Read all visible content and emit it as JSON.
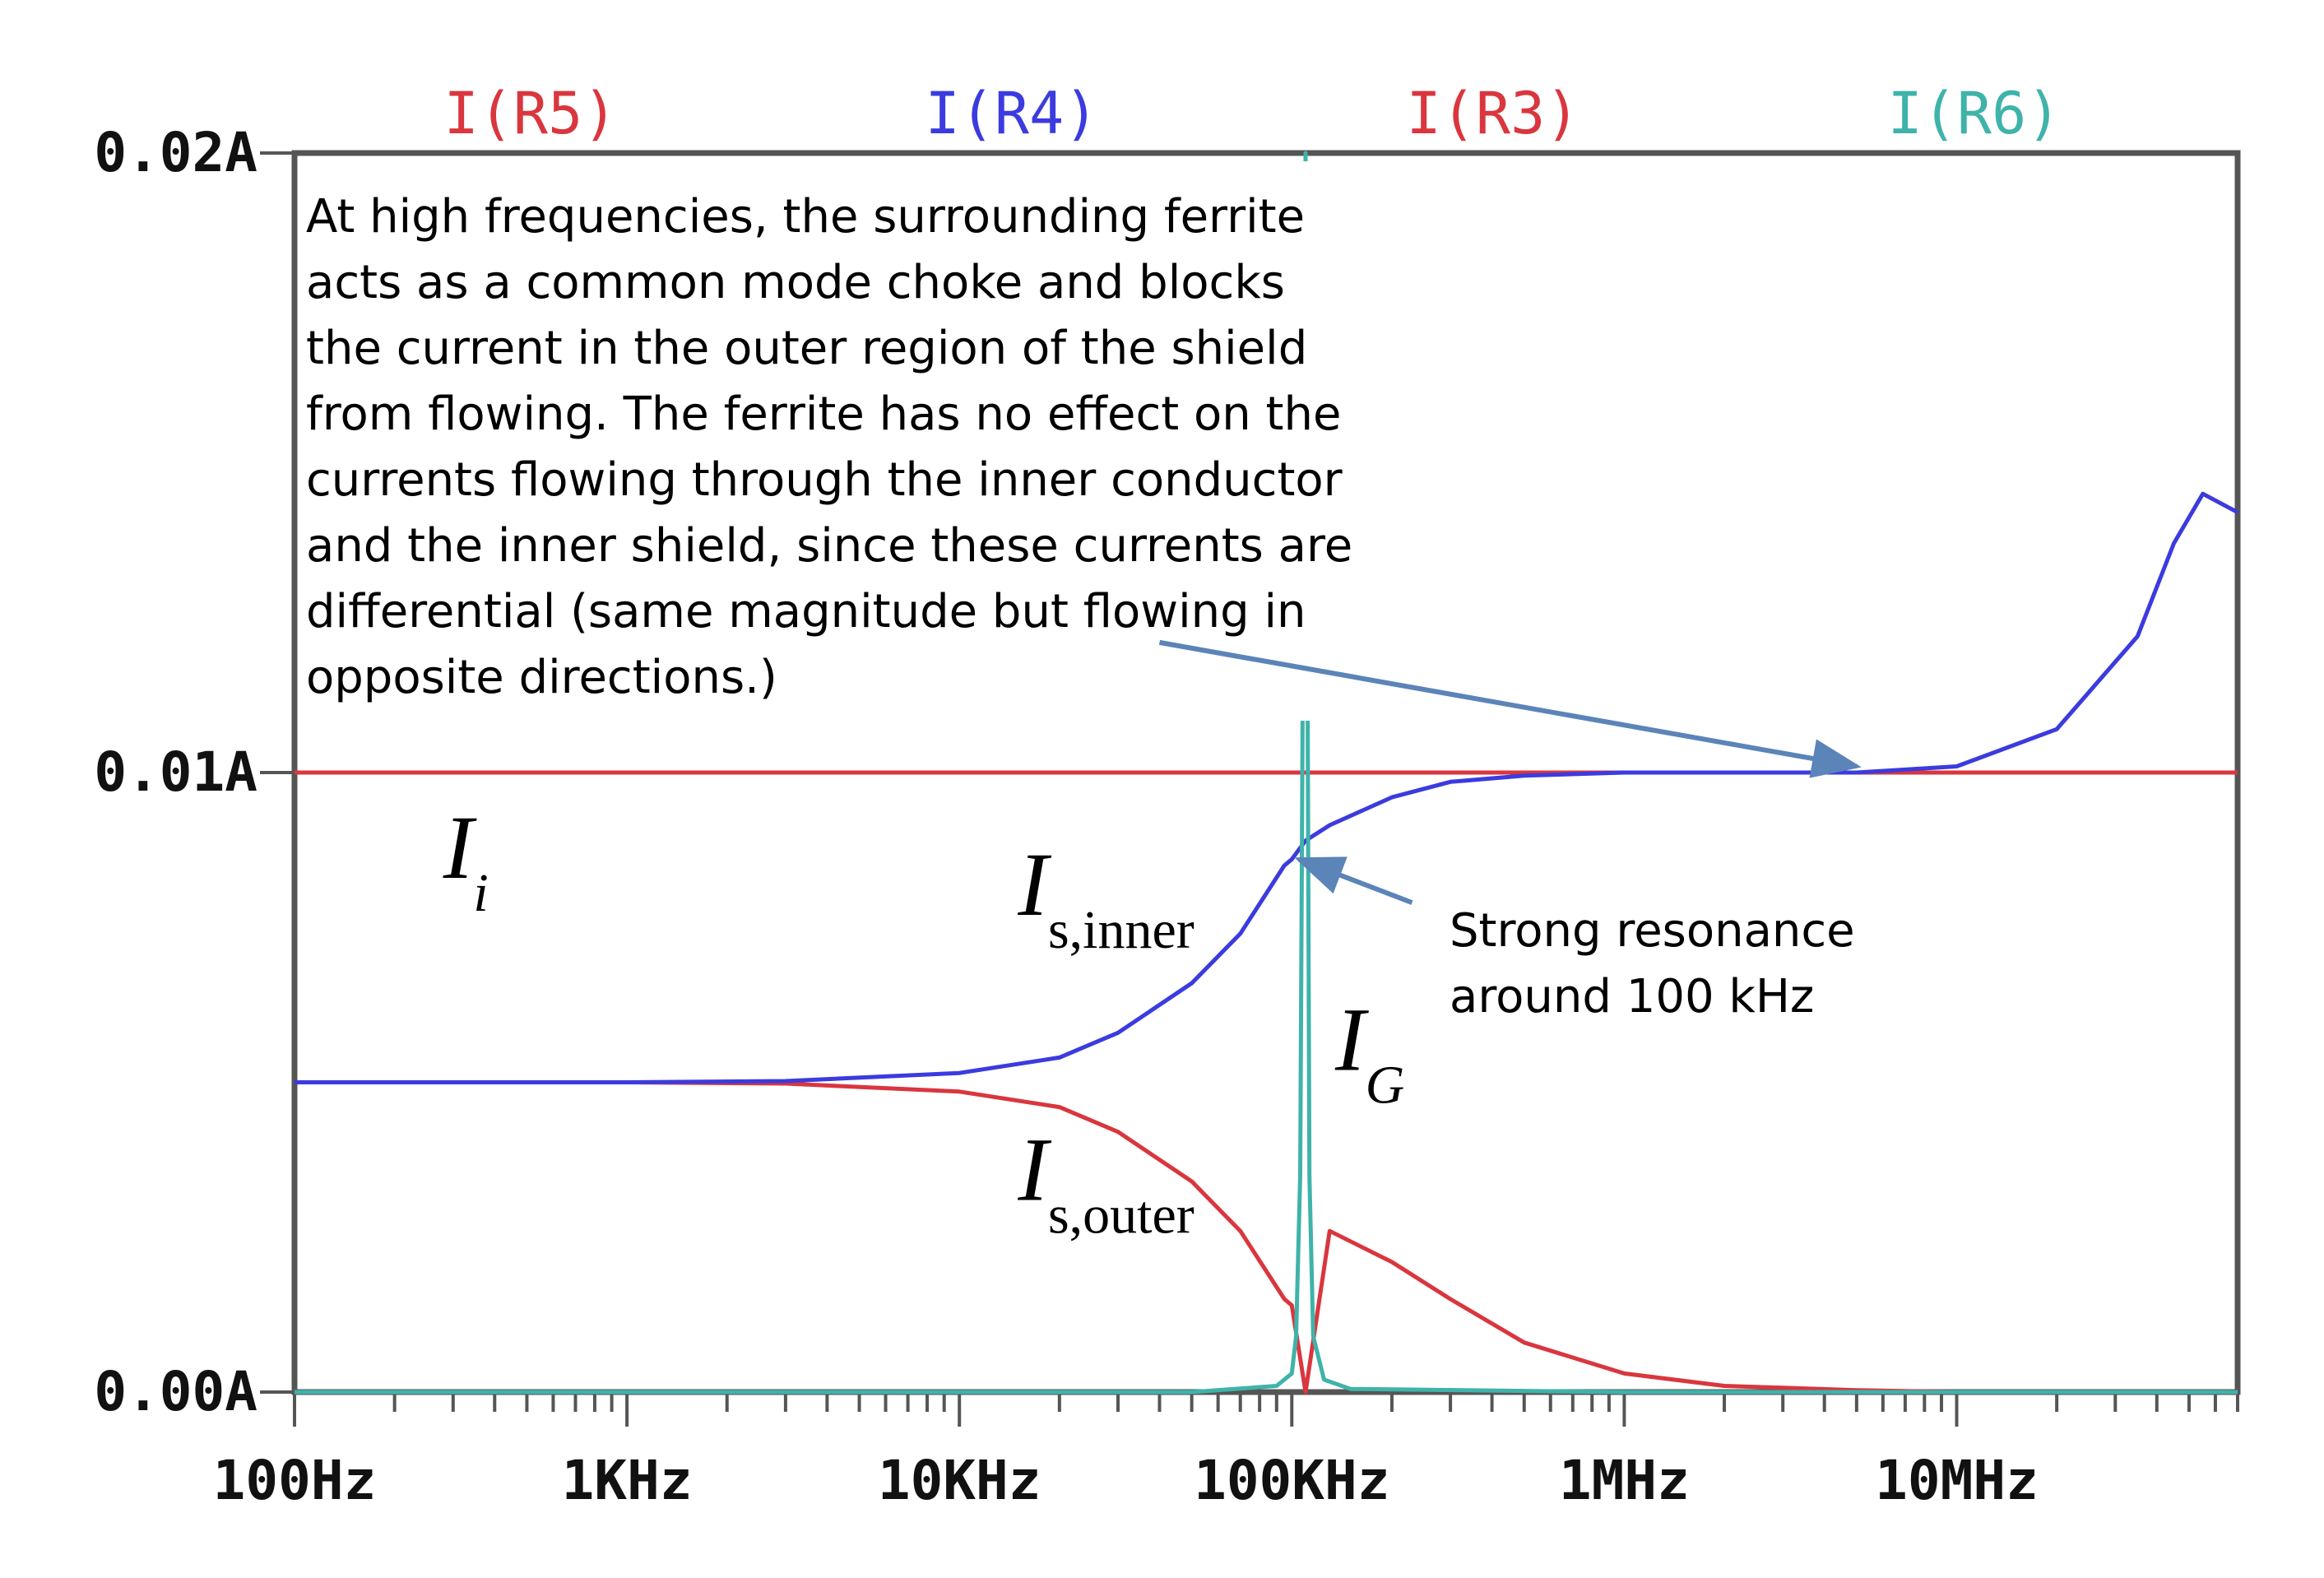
{
  "chart_data": {
    "type": "line",
    "x_scale": "log",
    "x_unit": "Hz",
    "xlim": [
      100,
      70000000
    ],
    "ylim": [
      0,
      0.02
    ],
    "grid": false,
    "legend_placement": "top",
    "x_ticks": [
      {
        "value": 100,
        "label": "100Hz"
      },
      {
        "value": 1000,
        "label": "1KHz"
      },
      {
        "value": 10000,
        "label": "10KHz"
      },
      {
        "value": 100000,
        "label": "100KHz"
      },
      {
        "value": 1000000,
        "label": "1MHz"
      },
      {
        "value": 10000000,
        "label": "10MHz"
      }
    ],
    "y_ticks": [
      {
        "value": 0.02,
        "label": "0.02A"
      },
      {
        "value": 0.01,
        "label": "0.01A"
      },
      {
        "value": 0.0,
        "label": "0.00A"
      }
    ],
    "series": [
      {
        "name": "I(R5)",
        "color": "#d9363e",
        "x": [
          100,
          1000,
          10000,
          100000,
          1000000,
          10000000,
          70000000
        ],
        "y": [
          0.01,
          0.01,
          0.01,
          0.01,
          0.01,
          0.01,
          0.01
        ]
      },
      {
        "name": "I(R4)",
        "color": "#3b3bdf",
        "x": [
          100,
          1000,
          3000,
          10000,
          20000,
          30000,
          50000,
          70000,
          95000,
          100000,
          110000,
          130000,
          200000,
          300000,
          500000,
          1000000,
          2000000,
          5000000,
          10000000,
          20000000,
          35000000,
          45000000,
          55000000,
          70000000
        ],
        "y": [
          0.005,
          0.005,
          0.00502,
          0.00515,
          0.0054,
          0.0058,
          0.0066,
          0.0074,
          0.0085,
          0.0086,
          0.0089,
          0.00915,
          0.0096,
          0.00985,
          0.00995,
          0.01,
          0.01,
          0.01,
          0.0101,
          0.0107,
          0.0122,
          0.0137,
          0.0145,
          0.0142
        ]
      },
      {
        "name": "I(R3)",
        "color": "#d9363e",
        "x": [
          100,
          1000,
          3000,
          10000,
          20000,
          30000,
          50000,
          70000,
          95000,
          100000,
          110000,
          130000,
          200000,
          300000,
          500000,
          1000000,
          2000000,
          5000000,
          10000000,
          70000000
        ],
        "y": [
          0.005,
          0.005,
          0.00498,
          0.00485,
          0.0046,
          0.0042,
          0.0034,
          0.0026,
          0.0015,
          0.0014,
          0.0,
          0.0026,
          0.0021,
          0.0015,
          0.0008,
          0.0003,
          0.0001,
          3e-05,
          0.0,
          0.0
        ]
      },
      {
        "name": "I(R6)",
        "color": "#3fb3aa",
        "x": [
          100,
          1000,
          10000,
          50000,
          90000,
          100000,
          103000,
          106000,
          110000,
          113000,
          116000,
          125000,
          150000,
          1000000,
          70000000
        ],
        "y": [
          0.0,
          0.0,
          0.0,
          0.0,
          0.0001,
          0.0003,
          0.0009,
          0.0035,
          0.02,
          0.0035,
          0.0009,
          0.0002,
          5e-05,
          0.0,
          0.0
        ]
      }
    ],
    "annotations": [
      {
        "text_lines": [
          "At high frequencies, the surrounding ferrite",
          "acts as a common mode choke and blocks",
          "the current in the outer region of the shield",
          "from flowing. The ferrite has no effect on the",
          "currents flowing through the inner conductor",
          "and the inner shield, since these currents are",
          "differential (same magnitude but flowing in",
          "opposite directions.)"
        ],
        "arrow_from": {
          "x": 40000,
          "y": 0.0121
        },
        "arrow_to": {
          "x": 5000000,
          "y": 0.0101
        }
      },
      {
        "text_lines": [
          "Strong resonance",
          "around 100 kHz"
        ],
        "arrow_from": {
          "x": 230000,
          "y": 0.0079
        },
        "arrow_to": {
          "x": 105000,
          "y": 0.0086
        }
      }
    ],
    "curve_labels": [
      {
        "main": "I",
        "sub": "i",
        "x": 280,
        "y": 0.0083
      },
      {
        "main": "I",
        "sub": "s,inner",
        "x": 15000,
        "y": 0.0077
      },
      {
        "main": "I",
        "sub": "G",
        "x": 135000,
        "y": 0.0052
      },
      {
        "main": "I",
        "sub": "s,outer",
        "x": 15000,
        "y": 0.0031
      }
    ]
  }
}
